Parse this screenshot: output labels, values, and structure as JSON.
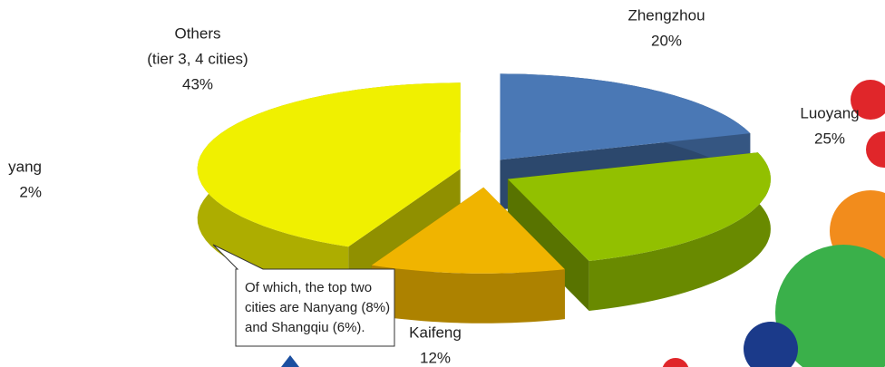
{
  "chart_data": {
    "type": "pie3d",
    "categories": [
      "Zhengzhou",
      "Luoyang",
      "Kaifeng",
      [
        "Others",
        "(tier 3, 4 cities)"
      ]
    ],
    "values": [
      20,
      25,
      12,
      43
    ],
    "value_labels": [
      "20%",
      "25%",
      "12%",
      "43%"
    ],
    "colors": [
      "#4a78b5",
      "#92c000",
      "#f0b400",
      "#f0f000"
    ],
    "cropped_label": [
      "yang",
      "2%"
    ],
    "callout": [
      "Of which, the top two",
      "cities are Nanyang (8%)",
      "and Shangqiu (6%)."
    ]
  }
}
